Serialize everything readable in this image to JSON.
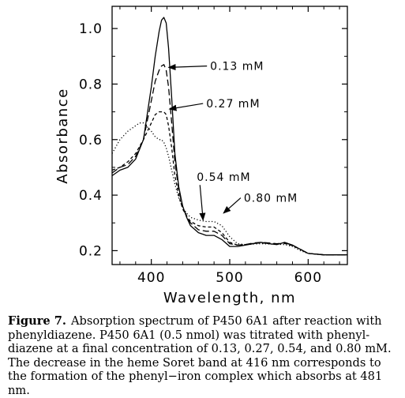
{
  "chart_data": {
    "type": "line",
    "xlabel": "Wavelength, nm",
    "ylabel": "Absorbance",
    "xlim": [
      350,
      650
    ],
    "ylim": [
      0.15,
      1.08
    ],
    "xticks": [
      400,
      500,
      600
    ],
    "yticks": [
      0.2,
      0.4,
      0.6,
      0.8,
      1.0
    ],
    "xtick_labels": [
      "400",
      "500",
      "600"
    ],
    "ytick_labels": [
      "0.2",
      "0.4",
      "0.6",
      "0.8",
      "1.0"
    ],
    "grid": false,
    "series": [
      {
        "style": "solid",
        "x": [
          350,
          360,
          370,
          380,
          390,
          400,
          405,
          410,
          413,
          416,
          419,
          422,
          426,
          430,
          435,
          440,
          445,
          450,
          460,
          470,
          480,
          490,
          500,
          510,
          520,
          530,
          540,
          550,
          560,
          570,
          580,
          590,
          600,
          620,
          650
        ],
        "y": [
          0.47,
          0.49,
          0.5,
          0.53,
          0.6,
          0.79,
          0.9,
          0.99,
          1.03,
          1.04,
          1.02,
          0.93,
          0.75,
          0.55,
          0.43,
          0.36,
          0.32,
          0.29,
          0.265,
          0.255,
          0.255,
          0.24,
          0.215,
          0.215,
          0.22,
          0.225,
          0.23,
          0.225,
          0.222,
          0.23,
          0.22,
          0.205,
          0.19,
          0.185,
          0.185
        ]
      },
      {
        "style": "long-dash",
        "x": [
          350,
          360,
          370,
          380,
          390,
          400,
          405,
          410,
          413,
          416,
          419,
          422,
          426,
          430,
          435,
          440,
          445,
          450,
          460,
          470,
          480,
          490,
          500,
          510,
          520,
          530,
          540,
          550,
          560,
          570,
          580,
          590,
          600,
          620,
          650
        ],
        "y": [
          0.48,
          0.5,
          0.51,
          0.54,
          0.6,
          0.74,
          0.81,
          0.85,
          0.865,
          0.87,
          0.85,
          0.79,
          0.66,
          0.52,
          0.42,
          0.36,
          0.325,
          0.3,
          0.275,
          0.27,
          0.27,
          0.255,
          0.225,
          0.22,
          0.222,
          0.228,
          0.23,
          0.228,
          0.225,
          0.228,
          0.22,
          0.205,
          0.19,
          0.185,
          0.185
        ]
      },
      {
        "style": "short-dash",
        "x": [
          350,
          360,
          370,
          380,
          390,
          400,
          405,
          410,
          413,
          416,
          419,
          422,
          426,
          430,
          435,
          440,
          445,
          450,
          460,
          470,
          480,
          490,
          500,
          510,
          520,
          530,
          540,
          550,
          560,
          570,
          580,
          590,
          600,
          620,
          650
        ],
        "y": [
          0.49,
          0.5,
          0.52,
          0.55,
          0.6,
          0.66,
          0.69,
          0.7,
          0.7,
          0.7,
          0.69,
          0.65,
          0.57,
          0.47,
          0.4,
          0.35,
          0.325,
          0.305,
          0.29,
          0.285,
          0.285,
          0.265,
          0.23,
          0.22,
          0.222,
          0.226,
          0.228,
          0.226,
          0.224,
          0.226,
          0.218,
          0.205,
          0.19,
          0.185,
          0.185
        ]
      },
      {
        "style": "dotted",
        "x": [
          350,
          360,
          370,
          380,
          385,
          390,
          400,
          405,
          410,
          413,
          416,
          419,
          422,
          426,
          430,
          435,
          440,
          445,
          450,
          460,
          470,
          480,
          490,
          500,
          510,
          520,
          530,
          540,
          550,
          560,
          570,
          580,
          590,
          600,
          620,
          650
        ],
        "y": [
          0.55,
          0.6,
          0.63,
          0.65,
          0.66,
          0.66,
          0.63,
          0.61,
          0.6,
          0.6,
          0.59,
          0.57,
          0.54,
          0.49,
          0.44,
          0.39,
          0.355,
          0.335,
          0.32,
          0.31,
          0.305,
          0.305,
          0.29,
          0.25,
          0.225,
          0.222,
          0.224,
          0.225,
          0.224,
          0.223,
          0.222,
          0.215,
          0.2,
          0.19,
          0.185,
          0.185
        ]
      }
    ],
    "annotations": [
      {
        "text": "0.13 mM",
        "x": 475,
        "y": 0.865,
        "arrow_to": [
          422,
          0.86
        ]
      },
      {
        "text": "0.27 mM",
        "x": 470,
        "y": 0.73,
        "arrow_to": [
          423,
          0.71
        ]
      },
      {
        "text": "0.54 mM",
        "x": 458,
        "y": 0.465,
        "arrow_to": [
          466,
          0.31
        ]
      },
      {
        "text": "0.80 mM",
        "x": 518,
        "y": 0.39,
        "arrow_to": [
          492,
          0.335
        ]
      }
    ]
  },
  "caption": {
    "label": "Figure 7.",
    "text": "Absorption spectrum of P450 6A1 after reaction with phenyldiazene. P450 6A1 (0.5 nmol) was titrated with phenyl-diazene at a final concentration of 0.13, 0.27, 0.54, and 0.80 mM. The decrease in the heme Soret band at 416 nm corresponds to the formation of the phenyl−iron complex which absorbs at 481 nm."
  }
}
